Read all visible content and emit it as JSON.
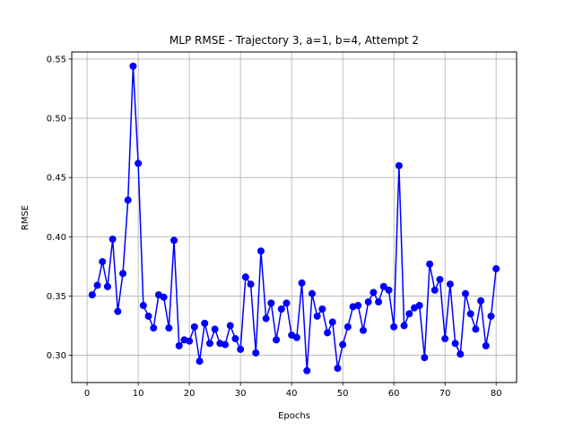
{
  "chart_data": {
    "type": "line",
    "title": "MLP RMSE - Trajectory 3, a=1, b=4, Attempt 2",
    "xlabel": "Epochs",
    "ylabel": "RMSE",
    "xlim": [
      -3,
      84
    ],
    "ylim": [
      0.277,
      0.556
    ],
    "x_ticks": [
      0,
      10,
      20,
      30,
      40,
      50,
      60,
      70,
      80
    ],
    "y_ticks": [
      0.3,
      0.35,
      0.4,
      0.45,
      0.5,
      0.55
    ],
    "x_tick_labels": [
      "0",
      "10",
      "20",
      "30",
      "40",
      "50",
      "60",
      "70",
      "80"
    ],
    "y_tick_labels": [
      "0.30",
      "0.35",
      "0.40",
      "0.45",
      "0.50",
      "0.55"
    ],
    "grid": true,
    "series": [
      {
        "color": "#0000ff",
        "marker": "circle",
        "x": [
          1,
          2,
          3,
          4,
          5,
          6,
          7,
          8,
          9,
          10,
          11,
          12,
          13,
          14,
          15,
          16,
          17,
          18,
          19,
          20,
          21,
          22,
          23,
          24,
          25,
          26,
          27,
          28,
          29,
          30,
          31,
          32,
          33,
          34,
          35,
          36,
          37,
          38,
          39,
          40,
          41,
          42,
          43,
          44,
          45,
          46,
          47,
          48,
          49,
          50,
          51,
          52,
          53,
          54,
          55,
          56,
          57,
          58,
          59,
          60,
          61,
          62,
          63,
          64,
          65,
          66,
          67,
          68,
          69,
          70,
          71,
          72,
          73,
          74,
          75,
          76,
          77,
          78,
          79,
          80
        ],
        "values": [
          0.351,
          0.359,
          0.379,
          0.358,
          0.398,
          0.337,
          0.369,
          0.431,
          0.544,
          0.462,
          0.342,
          0.333,
          0.323,
          0.351,
          0.349,
          0.323,
          0.397,
          0.308,
          0.313,
          0.312,
          0.324,
          0.295,
          0.327,
          0.31,
          0.322,
          0.31,
          0.309,
          0.325,
          0.314,
          0.305,
          0.366,
          0.36,
          0.302,
          0.388,
          0.331,
          0.344,
          0.313,
          0.339,
          0.344,
          0.317,
          0.315,
          0.361,
          0.287,
          0.352,
          0.333,
          0.339,
          0.319,
          0.328,
          0.289,
          0.309,
          0.324,
          0.341,
          0.342,
          0.321,
          0.345,
          0.353,
          0.345,
          0.358,
          0.355,
          0.324,
          0.46,
          0.325,
          0.335,
          0.34,
          0.342,
          0.298,
          0.377,
          0.355,
          0.364,
          0.314,
          0.36,
          0.31,
          0.301,
          0.352,
          0.335,
          0.322,
          0.346,
          0.308,
          0.333,
          0.373
        ]
      }
    ]
  }
}
